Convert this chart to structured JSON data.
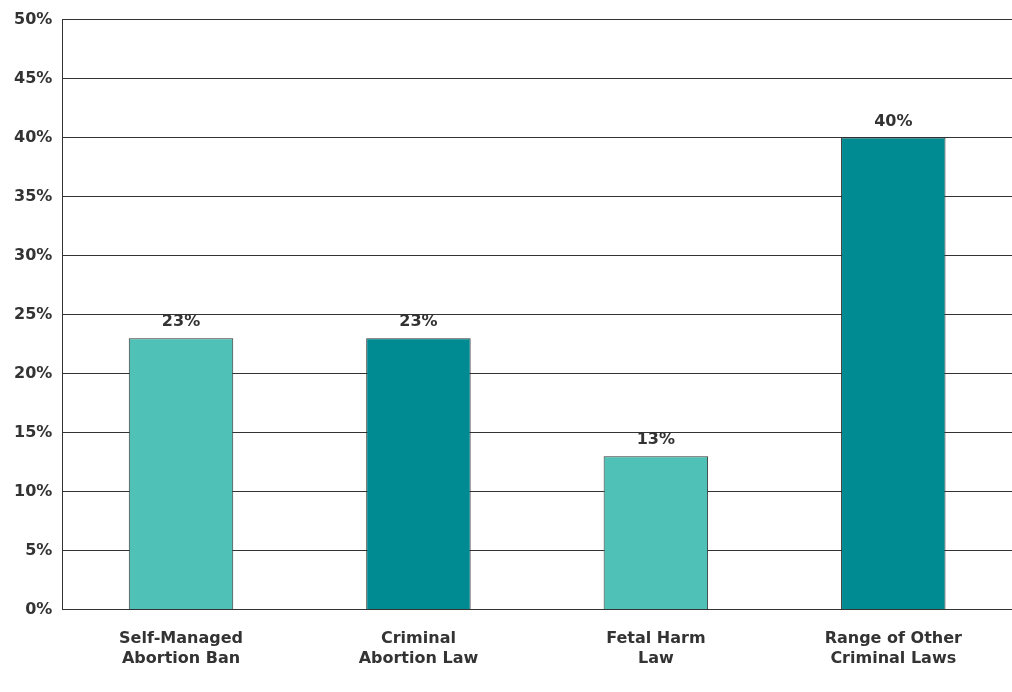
{
  "chart_data": {
    "type": "bar",
    "categories": [
      "Self-Managed Abortion Ban",
      "Criminal Abortion Law",
      "Fetal Harm Law",
      "Range of Other Criminal Laws"
    ],
    "values": [
      23,
      23,
      13,
      40
    ],
    "colors": [
      "#4fc1b6",
      "#008b93",
      "#4fc1b6",
      "#008b93"
    ],
    "ylim": [
      0,
      50
    ],
    "yticks": [
      {
        "value": 0,
        "label": "0%"
      },
      {
        "value": 5,
        "label": "5%"
      },
      {
        "value": 10,
        "label": "10%"
      },
      {
        "value": 15,
        "label": "15%"
      },
      {
        "value": 20,
        "label": "20%"
      },
      {
        "value": 25,
        "label": "25%"
      },
      {
        "value": 30,
        "label": "30%"
      },
      {
        "value": 35,
        "label": "35%"
      },
      {
        "value": 40,
        "label": "40%"
      },
      {
        "value": 45,
        "label": "45%"
      },
      {
        "value": 50,
        "label": "50%"
      }
    ],
    "value_labels": [
      "23%",
      "23%",
      "13%",
      "40%"
    ],
    "grid": "y"
  }
}
